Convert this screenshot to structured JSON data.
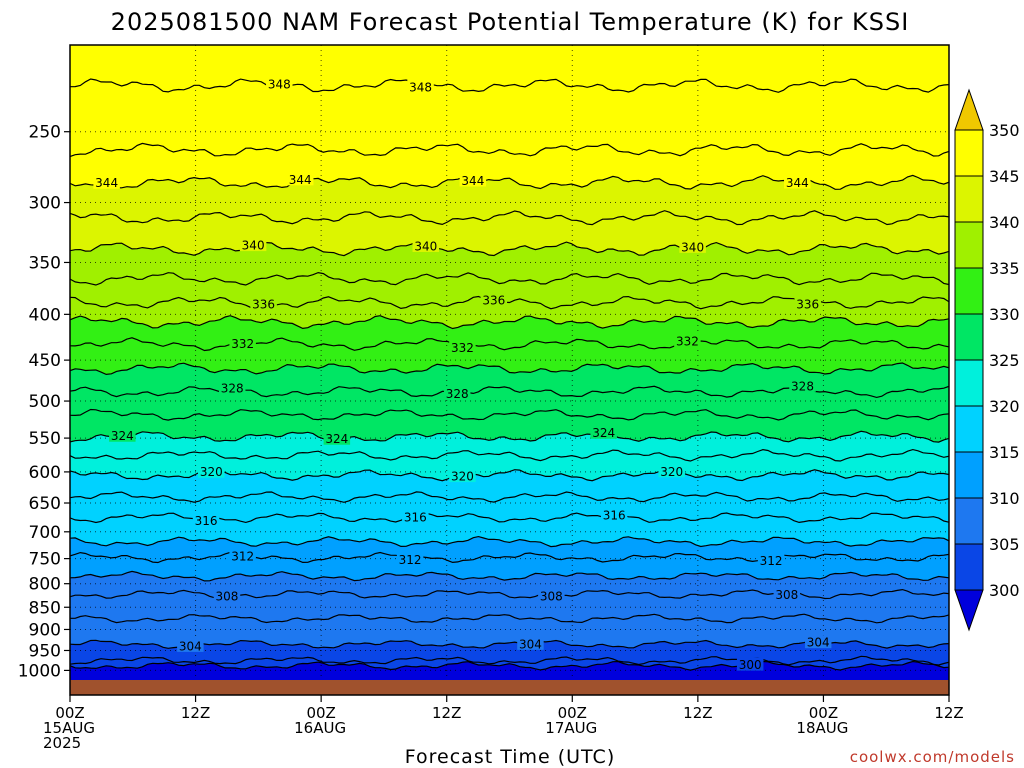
{
  "chart_data": {
    "type": "heatmap",
    "title": "2025081500 NAM Forecast Potential Temperature (K) for KSSI",
    "xlabel": "Forecast Time (UTC)",
    "ylabel": "",
    "x_ticks": [
      {
        "hour": 0,
        "lines": [
          "00Z",
          "15AUG",
          "2025"
        ]
      },
      {
        "hour": 12,
        "lines": [
          "12Z"
        ]
      },
      {
        "hour": 24,
        "lines": [
          "00Z",
          "16AUG"
        ]
      },
      {
        "hour": 36,
        "lines": [
          "12Z"
        ]
      },
      {
        "hour": 48,
        "lines": [
          "00Z",
          "17AUG"
        ]
      },
      {
        "hour": 60,
        "lines": [
          "12Z"
        ]
      },
      {
        "hour": 72,
        "lines": [
          "00Z",
          "18AUG"
        ]
      },
      {
        "hour": 84,
        "lines": [
          "12Z"
        ]
      }
    ],
    "x_range_hours": [
      0,
      84
    ],
    "y_ticks": [
      250,
      300,
      350,
      400,
      450,
      500,
      550,
      600,
      650,
      700,
      750,
      800,
      850,
      900,
      950,
      1000
    ],
    "y_scale": "log",
    "y_range_hPa": [
      200,
      1025
    ],
    "grid": "dotted",
    "colorbar": {
      "ticks": [
        300,
        305,
        310,
        315,
        320,
        325,
        330,
        335,
        340,
        345,
        350
      ],
      "colors": [
        "#0000dc",
        "#0a46e6",
        "#1e78f0",
        "#00a0ff",
        "#00d2ff",
        "#00f0dc",
        "#00e664",
        "#32f014",
        "#a0f000",
        "#dcf500",
        "#ffff00",
        "#f0c800"
      ],
      "extend": "both"
    },
    "contours": [
      {
        "value": 300,
        "pressure": 988,
        "label_hours": [
          65
        ]
      },
      {
        "value": 302,
        "pressure": 975,
        "label_hours": []
      },
      {
        "value": 304,
        "pressure": 935,
        "label_hours": [
          11.5,
          44,
          71.5
        ]
      },
      {
        "value": 306,
        "pressure": 875,
        "label_hours": []
      },
      {
        "value": 308,
        "pressure": 822,
        "label_hours": [
          15,
          46,
          68.5
        ]
      },
      {
        "value": 310,
        "pressure": 785,
        "label_hours": []
      },
      {
        "value": 312,
        "pressure": 748,
        "label_hours": [
          16.5,
          32.5,
          67
        ]
      },
      {
        "value": 314,
        "pressure": 718,
        "label_hours": []
      },
      {
        "value": 316,
        "pressure": 675,
        "label_hours": [
          13,
          33,
          52
        ]
      },
      {
        "value": 318,
        "pressure": 640,
        "label_hours": []
      },
      {
        "value": 320,
        "pressure": 605,
        "label_hours": [
          13.5,
          37.5,
          57.5
        ]
      },
      {
        "value": 322,
        "pressure": 575,
        "label_hours": []
      },
      {
        "value": 324,
        "pressure": 548,
        "label_hours": [
          5,
          25.5,
          51
        ]
      },
      {
        "value": 326,
        "pressure": 518,
        "label_hours": []
      },
      {
        "value": 328,
        "pressure": 488,
        "label_hours": [
          15.5,
          37,
          70
        ]
      },
      {
        "value": 330,
        "pressure": 460,
        "label_hours": []
      },
      {
        "value": 332,
        "pressure": 432,
        "label_hours": [
          16.5,
          37.5,
          59
        ]
      },
      {
        "value": 334,
        "pressure": 408,
        "label_hours": []
      },
      {
        "value": 336,
        "pressure": 388,
        "label_hours": [
          18.5,
          40.5,
          70.5
        ]
      },
      {
        "value": 338,
        "pressure": 365,
        "label_hours": []
      },
      {
        "value": 340,
        "pressure": 338,
        "label_hours": [
          17.5,
          34,
          59.5
        ]
      },
      {
        "value": 342,
        "pressure": 312,
        "label_hours": []
      },
      {
        "value": 344,
        "pressure": 285,
        "label_hours": [
          3.5,
          22,
          38.5,
          69.5
        ]
      },
      {
        "value": 346,
        "pressure": 262,
        "label_hours": []
      },
      {
        "value": 348,
        "pressure": 222,
        "label_hours": [
          20,
          33.5
        ]
      }
    ]
  },
  "credit": "coolwx.com/models"
}
